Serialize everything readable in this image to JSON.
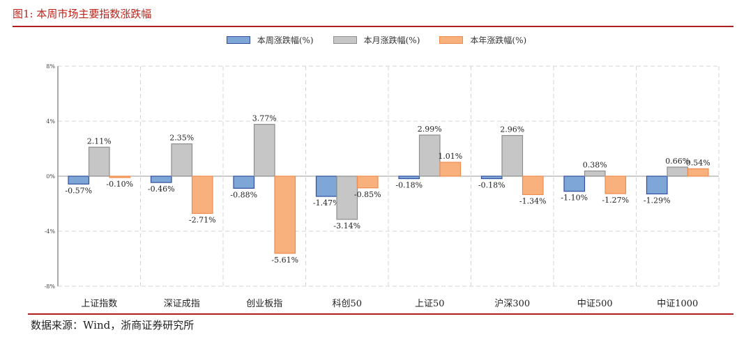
{
  "figure_title": "图1:   本周市场主要指数涨跌幅",
  "source": "数据来源：Wind，浙商证券研究所",
  "colors": {
    "week": "#7ea6d6",
    "week_edge": "#2f4f9e",
    "month": "#c6c6c6",
    "month_edge": "#8e8e8e",
    "year": "#f8b07c",
    "year_edge": "#ee8b4d",
    "accent": "#c0221a"
  },
  "chart_data": {
    "type": "bar",
    "categories": [
      "上证指数",
      "深证成指",
      "创业板指",
      "科创50",
      "上证50",
      "沪深300",
      "中证500",
      "中证1000"
    ],
    "series": [
      {
        "name": "本周涨跌幅(%)",
        "values": [
          -0.57,
          -0.46,
          -0.88,
          -1.47,
          -0.18,
          -0.18,
          -1.1,
          -1.29
        ],
        "labels": [
          "-0.57%",
          "-0.46%",
          "-0.88%",
          "-1.47%",
          "-0.18%",
          "-0.18%",
          "-1.10%",
          "-1.29%"
        ]
      },
      {
        "name": "本月涨跌幅(%)",
        "values": [
          2.11,
          2.35,
          3.77,
          -3.14,
          2.99,
          2.96,
          0.38,
          0.66
        ],
        "labels": [
          "2.11%",
          "2.35%",
          "3.77%",
          "-3.14%",
          "2.99%",
          "2.96%",
          "0.38%",
          "0.66%"
        ]
      },
      {
        "name": "本年涨跌幅(%)",
        "values": [
          -0.1,
          -2.71,
          -5.61,
          -0.85,
          1.01,
          -1.34,
          -1.27,
          0.54
        ],
        "labels": [
          "-0.10%",
          "-2.71%",
          "-5.61%",
          "-0.85%",
          "1.01%",
          "-1.34%",
          "-1.27%",
          "0.54%"
        ]
      }
    ],
    "ylim": [
      -8,
      8
    ],
    "yticks": [
      8,
      4,
      0,
      -4,
      -8
    ],
    "ytick_labels": [
      "8%",
      "4%",
      "0%",
      "-4%",
      "-8%"
    ],
    "grid": true,
    "legend_position": "top-center"
  }
}
